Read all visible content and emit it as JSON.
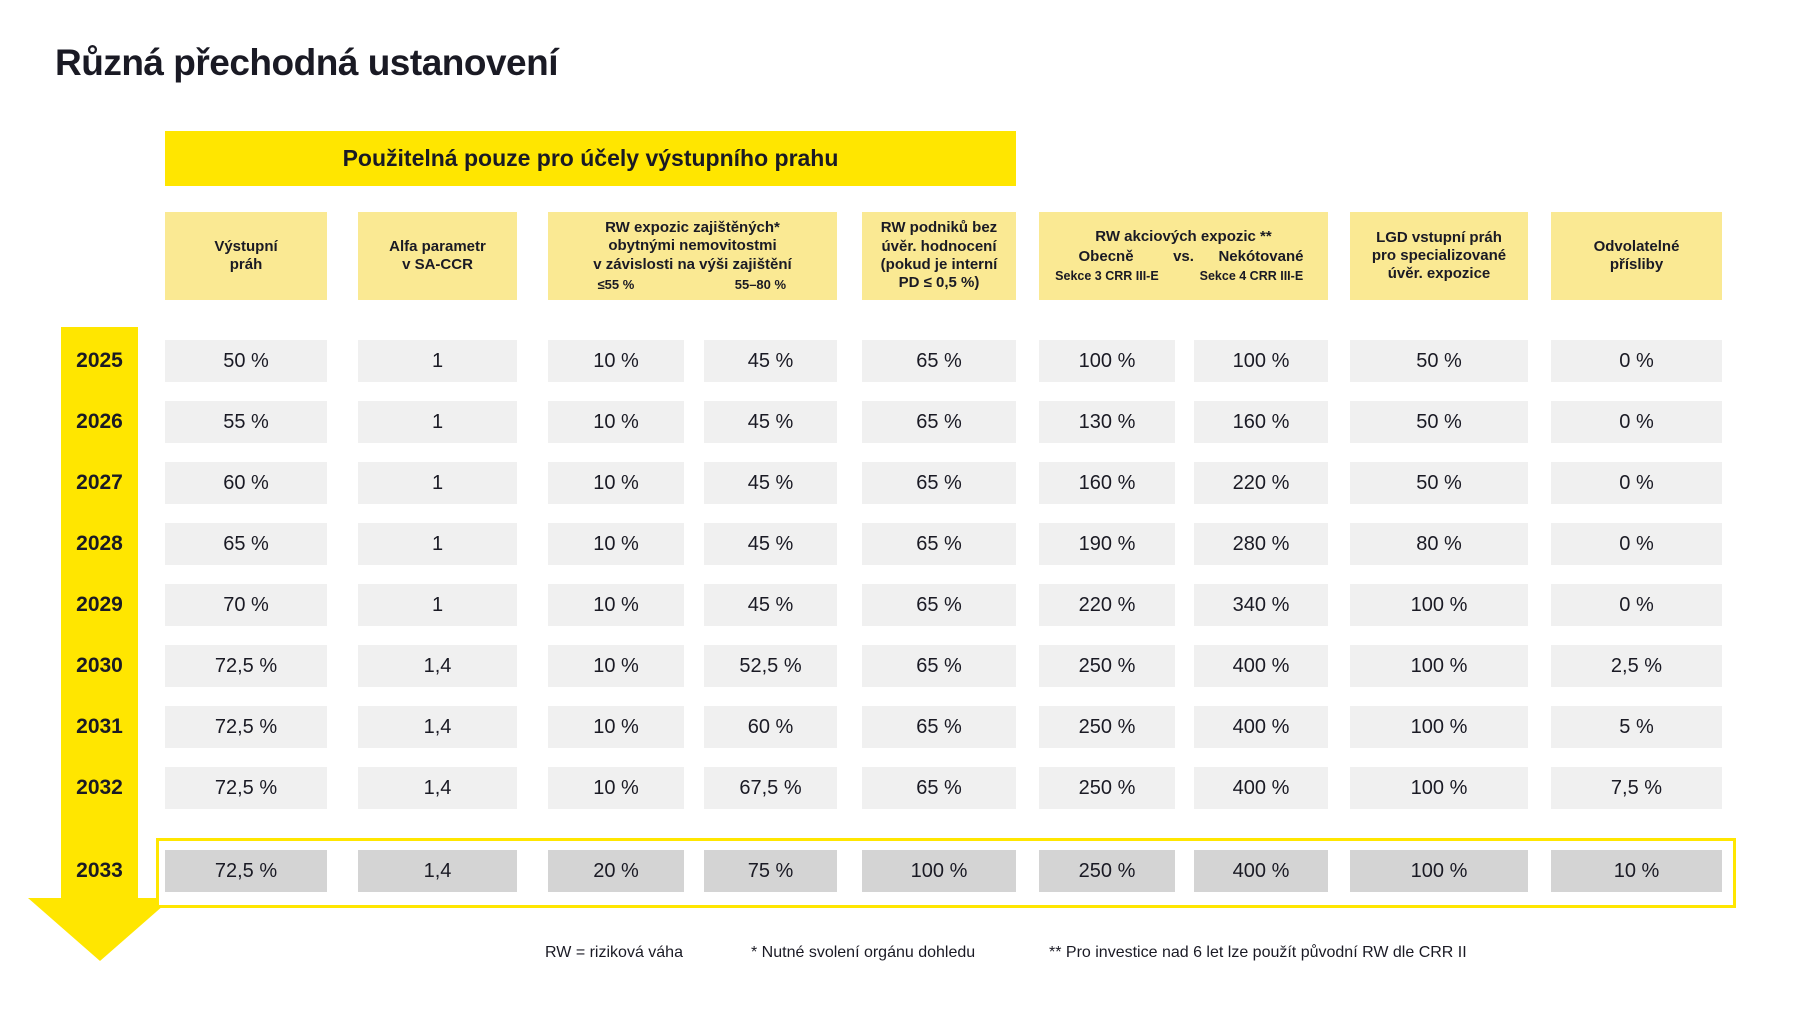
{
  "title": "Různá přechodná ustanovení",
  "banner": "Použitelná pouze pro účely výstupního prahu",
  "columns": [
    {
      "label": "Výstupní\npráh"
    },
    {
      "label": "Alfa parametr\nv SA-CCR"
    },
    {
      "label": "RW expozic zajištěných*\nobytnými nemovitostmi\nv závislosti na výši zajištění",
      "sub": [
        "≤55 %",
        "55–80 %"
      ]
    },
    {
      "label": "RW podniků bez\núvěr. hodnocení\n(pokud je interní\nPD ≤ 0,5 %)"
    },
    {
      "label": "RW akciových expozic **",
      "compare": [
        "Obecně",
        "vs.",
        "Nekótované"
      ],
      "sub": [
        "Sekce 3 CRR III-E",
        "Sekce 4 CRR III-E"
      ]
    },
    {
      "label": "LGD vstupní práh\npro specializované\núvěr. expozice"
    },
    {
      "label": "Odvolatelné\npřísliby"
    }
  ],
  "rows": [
    {
      "year": "2025",
      "values": [
        "50 %",
        "1",
        "10 %",
        "45 %",
        "65 %",
        "100 %",
        "100 %",
        "50 %",
        "0 %"
      ],
      "highlight": false
    },
    {
      "year": "2026",
      "values": [
        "55 %",
        "1",
        "10 %",
        "45 %",
        "65 %",
        "130 %",
        "160 %",
        "50 %",
        "0 %"
      ],
      "highlight": false
    },
    {
      "year": "2027",
      "values": [
        "60 %",
        "1",
        "10 %",
        "45 %",
        "65 %",
        "160 %",
        "220 %",
        "50 %",
        "0 %"
      ],
      "highlight": false
    },
    {
      "year": "2028",
      "values": [
        "65 %",
        "1",
        "10 %",
        "45 %",
        "65 %",
        "190 %",
        "280 %",
        "80 %",
        "0 %"
      ],
      "highlight": false
    },
    {
      "year": "2029",
      "values": [
        "70 %",
        "1",
        "10 %",
        "45 %",
        "65 %",
        "220 %",
        "340 %",
        "100 %",
        "0 %"
      ],
      "highlight": false
    },
    {
      "year": "2030",
      "values": [
        "72,5 %",
        "1,4",
        "10 %",
        "52,5 %",
        "65 %",
        "250 %",
        "400 %",
        "100 %",
        "2,5 %"
      ],
      "highlight": false
    },
    {
      "year": "2031",
      "values": [
        "72,5 %",
        "1,4",
        "10 %",
        "60 %",
        "65 %",
        "250 %",
        "400 %",
        "100 %",
        "5 %"
      ],
      "highlight": false
    },
    {
      "year": "2032",
      "values": [
        "72,5 %",
        "1,4",
        "10 %",
        "67,5 %",
        "65 %",
        "250 %",
        "400 %",
        "100 %",
        "7,5 %"
      ],
      "highlight": false
    },
    {
      "year": "2033",
      "values": [
        "72,5 %",
        "1,4",
        "20 %",
        "75 %",
        "100 %",
        "250 %",
        "400 %",
        "100 %",
        "10 %"
      ],
      "highlight": true
    }
  ],
  "footnotes": [
    "RW = riziková váha",
    "* Nutné svolení orgánu dohledu",
    "** Pro investice nad 6 let lze použít původní RW dle CRR II"
  ],
  "colors": {
    "accent_yellow": "#FFE600",
    "header_yellow": "#FAE993",
    "cell_grey": "#F0F0F0",
    "cell_dark_grey": "#D4D4D4",
    "text": "#1A1A24"
  }
}
